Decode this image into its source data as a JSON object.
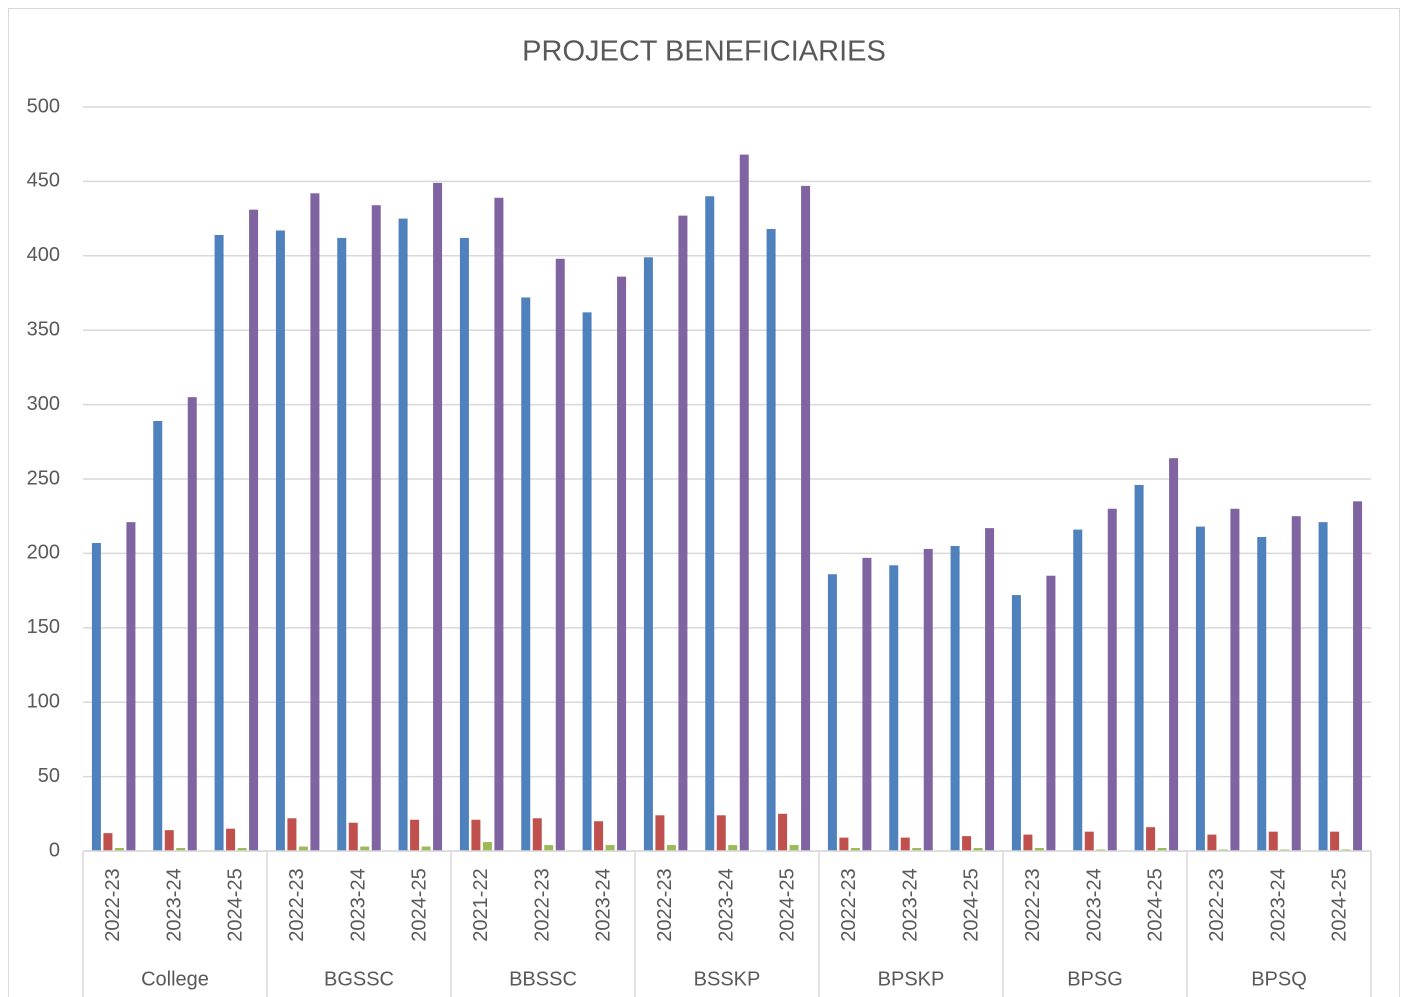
{
  "chart_data": {
    "type": "bar",
    "title": "PROJECT BENEFICIARIES",
    "groups": [
      {
        "name": "College",
        "categories": [
          "2022-23",
          "2023-24",
          "2024-25"
        ]
      },
      {
        "name": "BGSSC",
        "categories": [
          "2022-23",
          "2023-24",
          "2024-25"
        ]
      },
      {
        "name": "BBSSC",
        "categories": [
          "2021-22",
          "2022-23",
          "2023-24"
        ]
      },
      {
        "name": "BSSKP",
        "categories": [
          "2022-23",
          "2023-24",
          "2024-25"
        ]
      },
      {
        "name": "BPSKP",
        "categories": [
          "2022-23",
          "2023-24",
          "2024-25"
        ]
      },
      {
        "name": "BPSG",
        "categories": [
          "2022-23",
          "2023-24",
          "2024-25"
        ]
      },
      {
        "name": "BPSQ",
        "categories": [
          "2022-23",
          "2023-24",
          "2024-25"
        ]
      }
    ],
    "series": [
      {
        "color": "#4f81bd",
        "values": [
          207,
          289,
          414,
          417,
          412,
          425,
          412,
          372,
          362,
          399,
          440,
          418,
          186,
          192,
          205,
          172,
          216,
          246,
          218,
          211,
          221
        ]
      },
      {
        "color": "#c0504d",
        "values": [
          12,
          14,
          15,
          22,
          19,
          21,
          21,
          22,
          20,
          24,
          24,
          25,
          9,
          9,
          10,
          11,
          13,
          16,
          11,
          13,
          13
        ]
      },
      {
        "color": "#9bbb59",
        "values": [
          2,
          2,
          2,
          3,
          3,
          3,
          6,
          4,
          4,
          4,
          4,
          4,
          2,
          2,
          2,
          2,
          1,
          2,
          1,
          1,
          1
        ]
      },
      {
        "color": "#8064a2",
        "values": [
          221,
          305,
          431,
          442,
          434,
          449,
          439,
          398,
          386,
          427,
          468,
          447,
          197,
          203,
          217,
          185,
          230,
          264,
          230,
          225,
          235
        ]
      }
    ],
    "ylim": [
      0,
      500
    ],
    "yticks": [
      0,
      50,
      100,
      150,
      200,
      250,
      300,
      350,
      400,
      450,
      500
    ],
    "grid": true
  }
}
